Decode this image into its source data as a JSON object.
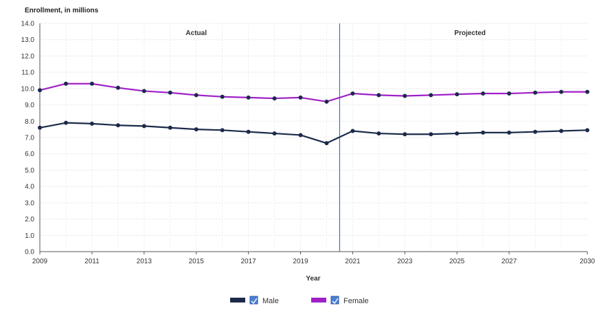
{
  "chart_data": {
    "type": "line",
    "ylabel": "Enrollment, in millions",
    "xlabel": "Year",
    "ylim": [
      0,
      14
    ],
    "y_ticks": [
      "0.0",
      "1.0",
      "2.0",
      "3.0",
      "4.0",
      "5.0",
      "6.0",
      "7.0",
      "8.0",
      "9.0",
      "10.0",
      "11.0",
      "12.0",
      "13.0",
      "14.0"
    ],
    "x_range": [
      2009,
      2030
    ],
    "x_tick_labels": [
      {
        "x": 2009,
        "label": "2009"
      },
      {
        "x": 2011,
        "label": "2011"
      },
      {
        "x": 2013,
        "label": "2013"
      },
      {
        "x": 2015,
        "label": "2015"
      },
      {
        "x": 2017,
        "label": "2017"
      },
      {
        "x": 2019,
        "label": "2019"
      },
      {
        "x": 2021,
        "label": "2021"
      },
      {
        "x": 2023,
        "label": "2023"
      },
      {
        "x": 2025,
        "label": "2025"
      },
      {
        "x": 2027,
        "label": "2027"
      },
      {
        "x": 2030,
        "label": "2030"
      }
    ],
    "divider_x": 2020.5,
    "regions": [
      {
        "label": "Actual",
        "x": 2015
      },
      {
        "label": "Projected",
        "x": 2025.5
      }
    ],
    "x": [
      2009,
      2010,
      2011,
      2012,
      2013,
      2014,
      2015,
      2016,
      2017,
      2018,
      2019,
      2020,
      2021,
      2022,
      2023,
      2024,
      2025,
      2026,
      2027,
      2028,
      2029,
      2030
    ],
    "series": [
      {
        "name": "Male",
        "color": "#1b2a4a",
        "values": [
          7.6,
          7.9,
          7.85,
          7.75,
          7.7,
          7.6,
          7.5,
          7.45,
          7.35,
          7.25,
          7.15,
          6.65,
          7.4,
          7.25,
          7.2,
          7.2,
          7.25,
          7.3,
          7.3,
          7.35,
          7.4,
          7.45
        ]
      },
      {
        "name": "Female",
        "color": "#a020c8",
        "values": [
          9.9,
          10.3,
          10.3,
          10.05,
          9.85,
          9.75,
          9.6,
          9.5,
          9.45,
          9.4,
          9.45,
          9.2,
          9.7,
          9.6,
          9.55,
          9.6,
          9.65,
          9.7,
          9.7,
          9.75,
          9.8,
          9.8
        ]
      }
    ],
    "legend": {
      "position": "bottom-center",
      "items": [
        "Male",
        "Female"
      ]
    },
    "grid": true,
    "divider_color": "#3a6fc4"
  }
}
